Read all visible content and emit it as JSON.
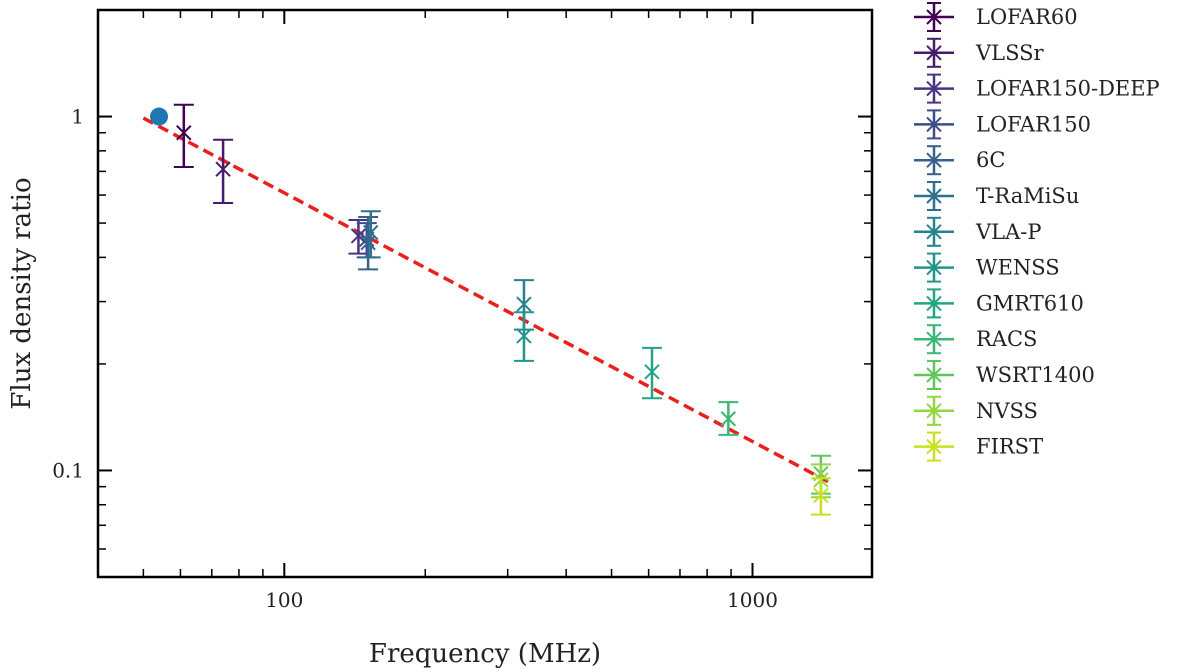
{
  "chart_data": {
    "type": "scatter",
    "title": "",
    "xlabel": "Frequency (MHz)",
    "ylabel": "Flux density ratio",
    "xscale": "log",
    "yscale": "log",
    "xlim": [
      40,
      1800
    ],
    "ylim": [
      0.05,
      2
    ],
    "x_ticks": [
      {
        "value": 100,
        "label": "100"
      },
      {
        "value": 1000,
        "label": "1000"
      }
    ],
    "y_ticks": [
      {
        "value": 0.1,
        "label": "0.1"
      },
      {
        "value": 1,
        "label": "1"
      }
    ],
    "legend_position": "outside right",
    "reference_point": {
      "x": 54,
      "y": 1.0,
      "color": "#1f77b4"
    },
    "fit_line": {
      "style": "dashed",
      "color": "#e8211c",
      "x": [
        50,
        1450
      ],
      "y": [
        0.99,
        0.093
      ]
    },
    "series": [
      {
        "name": "LOFAR60",
        "color": "#440154",
        "points": [
          {
            "x": 61,
            "y": 0.9,
            "yerr_low": 0.18,
            "yerr_high": 0.18
          }
        ]
      },
      {
        "name": "VLSSr",
        "color": "#471b6c",
        "points": [
          {
            "x": 74,
            "y": 0.71,
            "yerr_low": 0.14,
            "yerr_high": 0.15
          }
        ]
      },
      {
        "name": "LOFAR150-DEEP",
        "color": "#463480",
        "points": [
          {
            "x": 144,
            "y": 0.46,
            "yerr_low": 0.05,
            "yerr_high": 0.05
          }
        ]
      },
      {
        "name": "LOFAR150",
        "color": "#3e4c8a",
        "points": [
          {
            "x": 150,
            "y": 0.45,
            "yerr_low": 0.05,
            "yerr_high": 0.05
          }
        ]
      },
      {
        "name": "6C",
        "color": "#36618d",
        "points": [
          {
            "x": 151,
            "y": 0.44,
            "yerr_low": 0.07,
            "yerr_high": 0.08
          }
        ]
      },
      {
        "name": "T-RaMiSu",
        "color": "#2d718e",
        "points": [
          {
            "x": 153,
            "y": 0.47,
            "yerr_low": 0.07,
            "yerr_high": 0.07
          }
        ]
      },
      {
        "name": "VLA-P",
        "color": "#25838e",
        "points": [
          {
            "x": 325,
            "y": 0.295,
            "yerr_low": 0.045,
            "yerr_high": 0.05
          }
        ]
      },
      {
        "name": "WENSS",
        "color": "#1f958b",
        "points": [
          {
            "x": 325,
            "y": 0.24,
            "yerr_low": 0.036,
            "yerr_high": 0.04
          }
        ]
      },
      {
        "name": "GMRT610",
        "color": "#21a585",
        "points": [
          {
            "x": 610,
            "y": 0.19,
            "yerr_low": 0.03,
            "yerr_high": 0.032
          }
        ]
      },
      {
        "name": "RACS",
        "color": "#3bb674",
        "points": [
          {
            "x": 888,
            "y": 0.14,
            "yerr_low": 0.014,
            "yerr_high": 0.016
          }
        ]
      },
      {
        "name": "WSRT1400",
        "color": "#61c55e",
        "points": [
          {
            "x": 1400,
            "y": 0.098,
            "yerr_low": 0.012,
            "yerr_high": 0.012
          }
        ]
      },
      {
        "name": "NVSS",
        "color": "#93d640",
        "points": [
          {
            "x": 1400,
            "y": 0.094,
            "yerr_low": 0.01,
            "yerr_high": 0.01
          }
        ]
      },
      {
        "name": "FIRST",
        "color": "#c8e020",
        "points": [
          {
            "x": 1400,
            "y": 0.085,
            "yerr_low": 0.01,
            "yerr_high": 0.01
          }
        ]
      }
    ]
  }
}
